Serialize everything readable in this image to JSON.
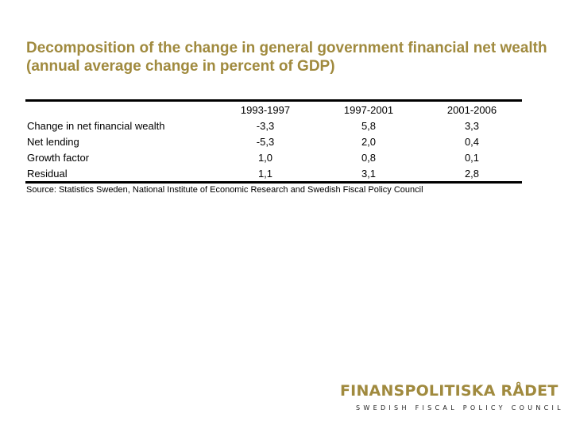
{
  "slide": {
    "title": "Decomposition of the change in general government financial net wealth (annual average change in percent of GDP)"
  },
  "table": {
    "columns": [
      "",
      "1993-1997",
      "1997-2001",
      "2001-2006"
    ],
    "rows": [
      {
        "label": "Change in net financial wealth",
        "values": [
          "-3,3",
          "5,8",
          "3,3"
        ]
      },
      {
        "label": "Net lending",
        "values": [
          "-5,3",
          "2,0",
          "0,4"
        ]
      },
      {
        "label": "Growth factor",
        "values": [
          "1,0",
          "0,8",
          "0,1"
        ]
      },
      {
        "label": "Residual",
        "values": [
          "1,1",
          "3,1",
          "2,8"
        ]
      }
    ]
  },
  "source": "Source: Statistics Sweden, National Institute of Economic Research and Swedish Fiscal Policy Council",
  "logo": {
    "name": "FINANSPOLITISKA RÅDET",
    "tagline": "SWEDISH FISCAL POLICY COUNCIL"
  },
  "colors": {
    "title": "#a08a3e",
    "logo": "#a08a3e",
    "rule": "#000000"
  }
}
